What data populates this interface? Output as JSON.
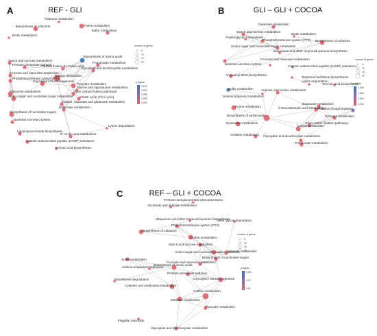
{
  "colors": {
    "red": "#e1636e",
    "blue": "#3f6fb0",
    "purple": "#8a6da6",
    "edge": "#b8b8b8"
  },
  "panels": [
    {
      "letter": "A",
      "title": "REF - GLI",
      "legend": {
        "size_title": "number of genes",
        "size_values": [
          "5",
          "10",
          "15",
          "20"
        ],
        "color_title": "p.adjust",
        "color_ticks": [
          "0.012",
          "0.010",
          "0.008",
          "0.005",
          "0.003"
        ]
      },
      "nodes": [
        {
          "label": "Thiamine metabolism",
          "color": "red",
          "size": 1
        },
        {
          "label": "Biosynthesis of cofactors",
          "color": "red",
          "size": 3
        },
        {
          "label": "Purine metabolism",
          "color": "red",
          "size": 3
        },
        {
          "label": "Biotin metabolism",
          "color": "red",
          "size": 1
        },
        {
          "label": "Sulfur metabolism",
          "color": "red",
          "size": 2
        },
        {
          "label": "Biosynthesis of amino acids",
          "color": "blue",
          "size": 3
        },
        {
          "label": "Starch and sucrose metabolism",
          "color": "red",
          "size": 2
        },
        {
          "label": "Pentose phosphate pathway",
          "color": "red",
          "size": 2
        },
        {
          "label": "Carbon fixation by Calvin cycle",
          "color": "red",
          "size": 2
        },
        {
          "label": "Propanoate metabolism",
          "color": "red",
          "size": 2
        },
        {
          "label": "Glyoxylate and dicarboxylate metabolism",
          "color": "red",
          "size": 2
        },
        {
          "label": "Fructose and mannose metabolism",
          "color": "red",
          "size": 2
        },
        {
          "label": "Carbon metabolism",
          "color": "red",
          "size": 4
        },
        {
          "label": "Phosphotransferase system (PTS)",
          "color": "red",
          "size": 2
        },
        {
          "label": "Glycolysis / Gluconeogenesis",
          "color": "red",
          "size": 3
        },
        {
          "label": "Pyruvate metabolism",
          "color": "red",
          "size": 3
        },
        {
          "label": "Taurine and hypotaurine metabolism",
          "color": "red",
          "size": 1
        },
        {
          "label": "Galactose metabolism",
          "color": "red",
          "size": 3
        },
        {
          "label": "Other carbon fixation pathways",
          "color": "red",
          "size": 2
        },
        {
          "label": "Amino sugar and nucleotide sugar metabolism",
          "color": "red",
          "size": 3
        },
        {
          "label": "Citrate cycle (TCA cycle)",
          "color": "red",
          "size": 2
        },
        {
          "label": "Alanine, aspartate and glutamate metabolism",
          "color": "red",
          "size": 2
        },
        {
          "label": "Butanoate metabolism",
          "color": "red",
          "size": 2
        },
        {
          "label": "Biosynthesis of nucleotide sugars",
          "color": "red",
          "size": 3
        },
        {
          "label": "Bacterial secretion system",
          "color": "red",
          "size": 2
        },
        {
          "label": "Lipopolysaccharide biosynthesis",
          "color": "red",
          "size": 2
        },
        {
          "label": "Lysine degradation",
          "color": "red",
          "size": 1
        },
        {
          "label": "D-Amino acid metabolism",
          "color": "red",
          "size": 2
        },
        {
          "label": "Cationic antimicrobial peptide (CAMP) resistance",
          "color": "red",
          "size": 2
        },
        {
          "label": "Teichoic acid biosynthesis",
          "color": "red",
          "size": 1
        }
      ],
      "edges": [
        [
          5,
          12
        ],
        [
          5,
          15
        ],
        [
          5,
          14
        ],
        [
          5,
          21
        ],
        [
          5,
          8
        ],
        [
          5,
          10
        ],
        [
          7,
          8
        ],
        [
          7,
          12
        ],
        [
          7,
          14
        ],
        [
          8,
          12
        ],
        [
          8,
          14
        ],
        [
          6,
          11
        ],
        [
          6,
          13
        ],
        [
          6,
          17
        ],
        [
          6,
          19
        ],
        [
          11,
          13
        ],
        [
          11,
          14
        ],
        [
          11,
          17
        ],
        [
          11,
          19
        ],
        [
          13,
          17
        ],
        [
          13,
          19
        ],
        [
          17,
          19
        ],
        [
          19,
          23
        ],
        [
          12,
          14
        ],
        [
          12,
          15
        ],
        [
          12,
          10
        ],
        [
          12,
          18
        ],
        [
          12,
          20
        ],
        [
          12,
          22
        ],
        [
          12,
          9
        ],
        [
          9,
          15
        ],
        [
          9,
          10
        ],
        [
          9,
          22
        ],
        [
          10,
          15
        ],
        [
          10,
          18
        ],
        [
          14,
          15
        ],
        [
          15,
          20
        ],
        [
          15,
          22
        ],
        [
          15,
          18
        ],
        [
          18,
          20
        ],
        [
          20,
          21
        ],
        [
          16,
          22
        ],
        [
          22,
          26
        ],
        [
          26,
          27
        ],
        [
          21,
          27
        ],
        [
          23,
          24
        ],
        [
          12,
          27
        ],
        [
          14,
          19
        ]
      ]
    },
    {
      "letter": "B",
      "title": "GLI – GLI + COCOA",
      "legend": {
        "size_title": "number of genes",
        "size_values": [
          "5",
          "10",
          "15",
          "20"
        ],
        "color_title": "p.adjust",
        "color_ticks": [
          "0.008",
          "0.006",
          "0.004",
          "0.002"
        ]
      },
      "nodes": [
        {
          "label": "Galactose metabolism",
          "color": "red",
          "size": 2
        },
        {
          "label": "Starch and sucrose metabolism",
          "color": "red",
          "size": 2
        },
        {
          "label": "Biotin metabolism",
          "color": "red",
          "size": 1
        },
        {
          "label": "Peptidoglycan biosynthesis",
          "color": "red",
          "size": 1
        },
        {
          "label": "Phosphotransferase system (PTS)",
          "color": "red",
          "size": 2
        },
        {
          "label": "Biosynthesis of cofactors",
          "color": "red",
          "size": 3
        },
        {
          "label": "Amino sugar and nucleotide sugar metabolism",
          "color": "red",
          "size": 2
        },
        {
          "label": "Ubiquinone and other terpenoid-quinone biosynthesis",
          "color": "red",
          "size": 1
        },
        {
          "label": "Fructose and mannose metabolism",
          "color": "red",
          "size": 2
        },
        {
          "label": "Bacterial secretion system",
          "color": "red",
          "size": 1
        },
        {
          "label": "Cationic antimicrobial peptide (CAMP) resistance",
          "color": "red",
          "size": 1
        },
        {
          "label": "Aminoacyl-tRNA biosynthesis",
          "color": "red",
          "size": 2
        },
        {
          "label": "Terpenoid backbone biosynthesis",
          "color": "red",
          "size": 1
        },
        {
          "label": "Lysine degradation",
          "color": "red",
          "size": 1
        },
        {
          "label": "Teichoic acid biosynthesis",
          "color": "red",
          "size": 1
        },
        {
          "label": "Sulfur metabolism",
          "color": "blue",
          "size": 2
        },
        {
          "label": "Arginine and proline metabolism",
          "color": "red",
          "size": 2
        },
        {
          "label": "Selenocompound metabolism",
          "color": "red",
          "size": 1
        },
        {
          "label": "Butanoate metabolism",
          "color": "red",
          "size": 2
        },
        {
          "label": "Purine metabolism",
          "color": "red",
          "size": 3
        },
        {
          "label": "2-Oxocarboxylic acid metabolism",
          "color": "red",
          "size": 2
        },
        {
          "label": "Oxidative phosphorylation",
          "color": "purple",
          "size": 2
        },
        {
          "label": "Biosynthesis of amino acids",
          "color": "red",
          "size": 4
        },
        {
          "label": "Nucleotide metabolism",
          "color": "red",
          "size": 3
        },
        {
          "label": "Pyruvate metabolism",
          "color": "red",
          "size": 2
        },
        {
          "label": "Other carbon fixation pathways",
          "color": "red",
          "size": 2
        },
        {
          "label": "Carbon metabolism",
          "color": "red",
          "size": 3
        },
        {
          "label": "Histidine metabolism",
          "color": "red",
          "size": 2
        },
        {
          "label": "Glyoxylate and dicarboxylate metabolism",
          "color": "red",
          "size": 2
        },
        {
          "label": "Propanoate metabolism",
          "color": "red",
          "size": 2
        }
      ],
      "edges": [
        [
          0,
          1
        ],
        [
          0,
          4
        ],
        [
          0,
          6
        ],
        [
          0,
          8
        ],
        [
          1,
          4
        ],
        [
          1,
          6
        ],
        [
          4,
          6
        ],
        [
          4,
          8
        ],
        [
          6,
          8
        ],
        [
          5,
          7
        ],
        [
          5,
          2
        ],
        [
          5,
          11
        ],
        [
          6,
          3
        ],
        [
          12,
          13
        ],
        [
          15,
          17
        ],
        [
          15,
          22
        ],
        [
          17,
          22
        ],
        [
          16,
          22
        ],
        [
          16,
          20
        ],
        [
          18,
          20
        ],
        [
          18,
          24
        ],
        [
          18,
          25
        ],
        [
          19,
          23
        ],
        [
          19,
          22
        ],
        [
          20,
          22
        ],
        [
          20,
          26
        ],
        [
          21,
          24
        ],
        [
          21,
          26
        ],
        [
          22,
          23
        ],
        [
          22,
          26
        ],
        [
          22,
          27
        ],
        [
          24,
          25
        ],
        [
          24,
          26
        ],
        [
          24,
          28
        ],
        [
          25,
          26
        ],
        [
          26,
          28
        ],
        [
          26,
          29
        ],
        [
          28,
          29
        ],
        [
          20,
          24
        ],
        [
          22,
          25
        ],
        [
          18,
          26
        ]
      ]
    },
    {
      "letter": "C",
      "title": "REF – GLI + COCOA",
      "legend": {
        "size_title": "number of genes",
        "size_values": [
          "5",
          "10",
          "15",
          "20"
        ],
        "color_title": "p.adjust",
        "color_ticks": [
          "0.03",
          "0.02",
          "0.01"
        ]
      },
      "nodes": [
        {
          "label": "Pentose and glucuronate interconversions",
          "color": "red",
          "size": 1
        },
        {
          "label": "Ascorbate and aldarate metabolism",
          "color": "red",
          "size": 1
        },
        {
          "label": "Ubiquinone and other terpenoid-quinone biosynthesis",
          "color": "red",
          "size": 1
        },
        {
          "label": "Other glycan degradation",
          "color": "red",
          "size": 1
        },
        {
          "label": "Phosphotransferase system (PTS)",
          "color": "red",
          "size": 2
        },
        {
          "label": "Biosynthesis of cofactors",
          "color": "red",
          "size": 3
        },
        {
          "label": "Purine metabolism",
          "color": "red",
          "size": 3
        },
        {
          "label": "Starch and sucrose metabolism",
          "color": "red",
          "size": 2
        },
        {
          "label": "Amino sugar and nucleotide sugar metabolism",
          "color": "red",
          "size": 3
        },
        {
          "label": "Sulfur metabolism",
          "color": "red",
          "size": 2
        },
        {
          "label": "Galactose metabolism",
          "color": "red",
          "size": 2
        },
        {
          "label": "Biosynthesis of nucleotide sugars",
          "color": "red",
          "size": 2
        },
        {
          "label": "Fructose and mannose metabolism",
          "color": "red",
          "size": 2
        },
        {
          "label": "Selenocompound metabolism",
          "color": "red",
          "size": 1
        },
        {
          "label": "Biosynthesis of amino acids",
          "color": "red",
          "size": 3
        },
        {
          "label": "Pentose phosphate pathway",
          "color": "red",
          "size": 2
        },
        {
          "label": "Nitrotoluene degradation",
          "color": "red",
          "size": 1
        },
        {
          "label": "Glycolysis / Gluconeogenesis",
          "color": "red",
          "size": 3
        },
        {
          "label": "Cysteine and methionine metabolism",
          "color": "red",
          "size": 3
        },
        {
          "label": "Carbon metabolism",
          "color": "red",
          "size": 4
        },
        {
          "label": "Methane metabolism",
          "color": "red",
          "size": 3
        },
        {
          "label": "Pyruvate metabolism",
          "color": "red",
          "size": 2
        },
        {
          "label": "Flagellar assembly",
          "color": "red",
          "size": 1
        },
        {
          "label": "Glyoxylate and dicarboxylate metabolism",
          "color": "red",
          "size": 2
        }
      ],
      "edges": [
        [
          0,
          1
        ],
        [
          2,
          5
        ],
        [
          3,
          10
        ],
        [
          4,
          7
        ],
        [
          4,
          8
        ],
        [
          4,
          10
        ],
        [
          4,
          12
        ],
        [
          6,
          8
        ],
        [
          7,
          8
        ],
        [
          7,
          10
        ],
        [
          7,
          11
        ],
        [
          7,
          12
        ],
        [
          8,
          10
        ],
        [
          8,
          11
        ],
        [
          8,
          12
        ],
        [
          10,
          11
        ],
        [
          10,
          12
        ],
        [
          11,
          12
        ],
        [
          12,
          17
        ],
        [
          9,
          13
        ],
        [
          9,
          14
        ],
        [
          9,
          18
        ],
        [
          13,
          14
        ],
        [
          13,
          18
        ],
        [
          14,
          18
        ],
        [
          14,
          17
        ],
        [
          14,
          19
        ],
        [
          14,
          20
        ],
        [
          15,
          17
        ],
        [
          15,
          19
        ],
        [
          17,
          19
        ],
        [
          17,
          20
        ],
        [
          17,
          21
        ],
        [
          19,
          20
        ],
        [
          19,
          21
        ],
        [
          19,
          23
        ],
        [
          20,
          23
        ],
        [
          21,
          23
        ],
        [
          18,
          20
        ],
        [
          16,
          14
        ],
        [
          12,
          15
        ],
        [
          5,
          6
        ],
        [
          17,
          8
        ],
        [
          20,
          21
        ]
      ]
    }
  ]
}
